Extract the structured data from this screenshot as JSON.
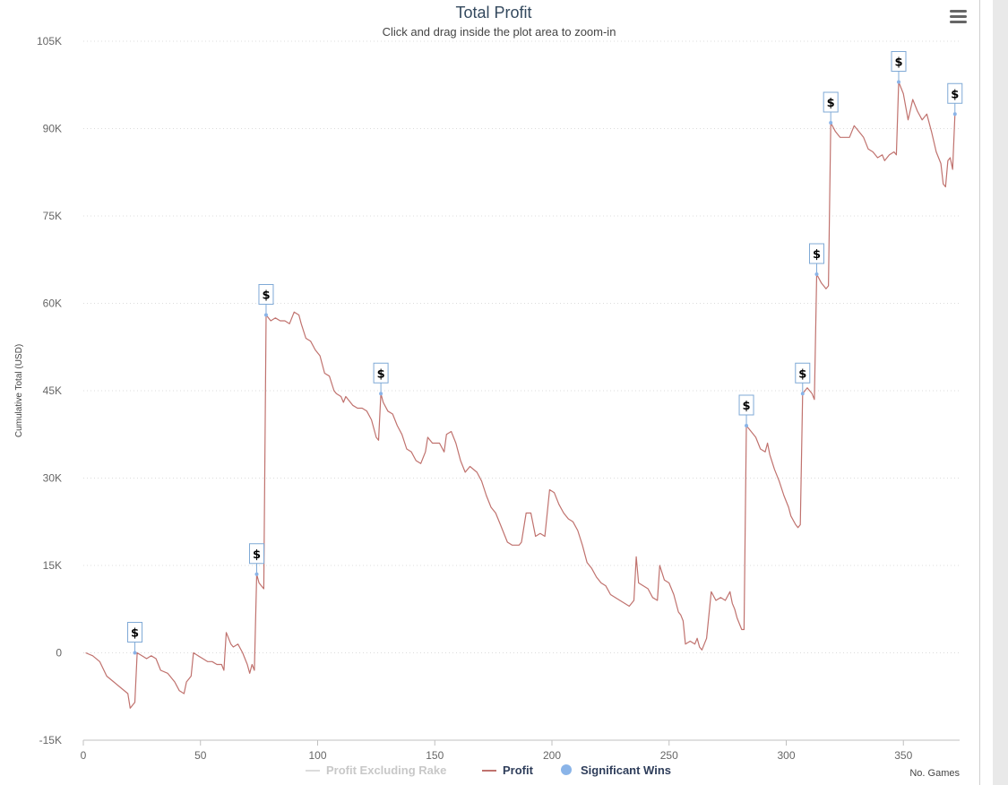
{
  "header": {
    "title": "Total Profit",
    "subtitle": "Click and drag inside the plot area to zoom-in"
  },
  "menu": {
    "icon": "hamburger-menu-icon"
  },
  "colors": {
    "title": "#34495e",
    "profit_line": "#c0726e",
    "rake_line": "#dcdcdc",
    "marker_point": "#8ab4e8",
    "flag_border": "#7fa9d6",
    "grid": "#dcdcdc",
    "axis_text": "#666666",
    "legend_active": "#2e3d5a",
    "legend_inactive": "#c8c8c8"
  },
  "legend": {
    "items": [
      {
        "label": "Profit Excluding Rake",
        "active": false
      },
      {
        "label": "Profit",
        "active": true
      },
      {
        "label": "Significant Wins",
        "active": true
      }
    ]
  },
  "chart_data": {
    "type": "line",
    "title": "Total Profit",
    "subtitle": "Click and drag inside the plot area to zoom-in",
    "xlabel": "No. Games",
    "ylabel": "Cumulative Total (USD)",
    "xlim": [
      0,
      374
    ],
    "ylim": [
      -15000,
      105000
    ],
    "x_ticks": [
      0,
      50,
      100,
      150,
      200,
      250,
      300,
      350
    ],
    "y_ticks": [
      -15000,
      0,
      15000,
      30000,
      45000,
      60000,
      75000,
      90000,
      105000
    ],
    "y_tick_labels": [
      "-15K",
      "0",
      "15K",
      "30K",
      "45K",
      "60K",
      "75K",
      "90K",
      "105K"
    ],
    "grid": "horizontal dotted",
    "legend_position": "bottom",
    "series": [
      {
        "name": "Profit",
        "points": [
          [
            1,
            0
          ],
          [
            4,
            -500
          ],
          [
            7,
            -1500
          ],
          [
            10,
            -4000
          ],
          [
            13,
            -5000
          ],
          [
            16,
            -6000
          ],
          [
            19,
            -7000
          ],
          [
            20,
            -9500
          ],
          [
            21,
            -9000
          ],
          [
            22,
            -8500
          ],
          [
            23,
            0
          ],
          [
            25,
            -500
          ],
          [
            27,
            -1000
          ],
          [
            29,
            -500
          ],
          [
            31,
            -1000
          ],
          [
            33,
            -3000
          ],
          [
            36,
            -3500
          ],
          [
            39,
            -5000
          ],
          [
            41,
            -6500
          ],
          [
            43,
            -7000
          ],
          [
            44,
            -5000
          ],
          [
            45,
            -4500
          ],
          [
            46,
            -4000
          ],
          [
            47,
            0
          ],
          [
            49,
            -500
          ],
          [
            51,
            -1000
          ],
          [
            53,
            -1500
          ],
          [
            55,
            -1500
          ],
          [
            57,
            -2000
          ],
          [
            58,
            -2000
          ],
          [
            59,
            -2000
          ],
          [
            60,
            -3000
          ],
          [
            61,
            3500
          ],
          [
            63,
            1500
          ],
          [
            64,
            1000
          ],
          [
            66,
            1500
          ],
          [
            68,
            0
          ],
          [
            70,
            -2000
          ],
          [
            71,
            -3500
          ],
          [
            72,
            -2000
          ],
          [
            73,
            -3000
          ],
          [
            74,
            13500
          ],
          [
            75,
            12000
          ],
          [
            76,
            11500
          ],
          [
            77,
            11000
          ],
          [
            78,
            58000
          ],
          [
            80,
            57000
          ],
          [
            82,
            57500
          ],
          [
            84,
            57000
          ],
          [
            86,
            57000
          ],
          [
            88,
            56500
          ],
          [
            90,
            58500
          ],
          [
            92,
            58000
          ],
          [
            93,
            56500
          ],
          [
            95,
            54000
          ],
          [
            97,
            53500
          ],
          [
            99,
            52000
          ],
          [
            101,
            51000
          ],
          [
            103,
            48000
          ],
          [
            105,
            47500
          ],
          [
            107,
            45000
          ],
          [
            108,
            44500
          ],
          [
            110,
            44000
          ],
          [
            111,
            43000
          ],
          [
            112,
            44000
          ],
          [
            114,
            43000
          ],
          [
            115,
            42500
          ],
          [
            117,
            42000
          ],
          [
            119,
            42000
          ],
          [
            121,
            41500
          ],
          [
            123,
            40000
          ],
          [
            125,
            37000
          ],
          [
            126,
            36500
          ],
          [
            127,
            44500
          ],
          [
            128,
            43000
          ],
          [
            130,
            41500
          ],
          [
            132,
            41000
          ],
          [
            134,
            39000
          ],
          [
            136,
            37500
          ],
          [
            138,
            35000
          ],
          [
            140,
            34500
          ],
          [
            142,
            33000
          ],
          [
            144,
            32500
          ],
          [
            146,
            34500
          ],
          [
            147,
            37000
          ],
          [
            149,
            36000
          ],
          [
            152,
            36000
          ],
          [
            154,
            34500
          ],
          [
            155,
            37500
          ],
          [
            157,
            38000
          ],
          [
            159,
            36000
          ],
          [
            161,
            33000
          ],
          [
            163,
            31000
          ],
          [
            165,
            32000
          ],
          [
            168,
            31000
          ],
          [
            170,
            29500
          ],
          [
            172,
            27000
          ],
          [
            174,
            25000
          ],
          [
            176,
            24000
          ],
          [
            178,
            22000
          ],
          [
            180,
            20000
          ],
          [
            181,
            19000
          ],
          [
            183,
            18500
          ],
          [
            186,
            18500
          ],
          [
            187,
            19000
          ],
          [
            189,
            24000
          ],
          [
            191,
            24000
          ],
          [
            193,
            20000
          ],
          [
            195,
            20500
          ],
          [
            197,
            20000
          ],
          [
            199,
            28000
          ],
          [
            201,
            27500
          ],
          [
            203,
            25500
          ],
          [
            205,
            24000
          ],
          [
            207,
            23000
          ],
          [
            209,
            22500
          ],
          [
            211,
            21000
          ],
          [
            213,
            18500
          ],
          [
            215,
            15500
          ],
          [
            217,
            14500
          ],
          [
            219,
            13000
          ],
          [
            221,
            12000
          ],
          [
            223,
            11500
          ],
          [
            225,
            10000
          ],
          [
            227,
            9500
          ],
          [
            229,
            9000
          ],
          [
            231,
            8500
          ],
          [
            233,
            8000
          ],
          [
            235,
            9000
          ],
          [
            236,
            16500
          ],
          [
            237,
            12000
          ],
          [
            239,
            11500
          ],
          [
            241,
            11000
          ],
          [
            243,
            9500
          ],
          [
            245,
            9000
          ],
          [
            246,
            15000
          ],
          [
            248,
            12500
          ],
          [
            250,
            12000
          ],
          [
            252,
            10000
          ],
          [
            254,
            7000
          ],
          [
            255,
            6500
          ],
          [
            256,
            5500
          ],
          [
            257,
            1500
          ],
          [
            259,
            2000
          ],
          [
            261,
            1500
          ],
          [
            262,
            2500
          ],
          [
            263,
            1000
          ],
          [
            264,
            500
          ],
          [
            266,
            2500
          ],
          [
            268,
            10500
          ],
          [
            270,
            9000
          ],
          [
            272,
            9500
          ],
          [
            274,
            9000
          ],
          [
            276,
            10500
          ],
          [
            277,
            8500
          ],
          [
            278,
            7500
          ],
          [
            279,
            6000
          ],
          [
            281,
            4000
          ],
          [
            282,
            4000
          ],
          [
            283,
            39000
          ],
          [
            285,
            38000
          ],
          [
            287,
            37000
          ],
          [
            289,
            35000
          ],
          [
            291,
            34500
          ],
          [
            292,
            36000
          ],
          [
            293,
            34000
          ],
          [
            295,
            31500
          ],
          [
            297,
            29500
          ],
          [
            299,
            27000
          ],
          [
            301,
            25000
          ],
          [
            302,
            23500
          ],
          [
            304,
            22000
          ],
          [
            305,
            21500
          ],
          [
            306,
            22000
          ],
          [
            307,
            44500
          ],
          [
            309,
            45500
          ],
          [
            311,
            44500
          ],
          [
            312,
            43500
          ],
          [
            313,
            65000
          ],
          [
            315,
            63500
          ],
          [
            317,
            62500
          ],
          [
            318,
            63000
          ],
          [
            319,
            91000
          ],
          [
            321,
            89500
          ],
          [
            323,
            88500
          ],
          [
            325,
            88500
          ],
          [
            327,
            88500
          ],
          [
            329,
            90500
          ],
          [
            331,
            89500
          ],
          [
            333,
            88500
          ],
          [
            335,
            86500
          ],
          [
            337,
            86000
          ],
          [
            339,
            85000
          ],
          [
            341,
            85500
          ],
          [
            342,
            84500
          ],
          [
            344,
            85500
          ],
          [
            346,
            86000
          ],
          [
            347,
            85500
          ],
          [
            348,
            98000
          ],
          [
            350,
            96000
          ],
          [
            352,
            91500
          ],
          [
            354,
            95000
          ],
          [
            356,
            93000
          ],
          [
            358,
            91500
          ],
          [
            360,
            92500
          ],
          [
            362,
            89500
          ],
          [
            364,
            86000
          ],
          [
            366,
            84000
          ],
          [
            367,
            80500
          ],
          [
            368,
            80000
          ],
          [
            369,
            84500
          ],
          [
            370,
            85000
          ],
          [
            371,
            83000
          ],
          [
            372,
            92500
          ]
        ]
      },
      {
        "name": "Significant Wins",
        "marker_label": "$",
        "points": [
          [
            22,
            0
          ],
          [
            74,
            13500
          ],
          [
            78,
            58000
          ],
          [
            127,
            44500
          ],
          [
            283,
            39000
          ],
          [
            307,
            44500
          ],
          [
            313,
            65000
          ],
          [
            319,
            91000
          ],
          [
            348,
            98000
          ],
          [
            372,
            92500
          ]
        ]
      }
    ]
  }
}
